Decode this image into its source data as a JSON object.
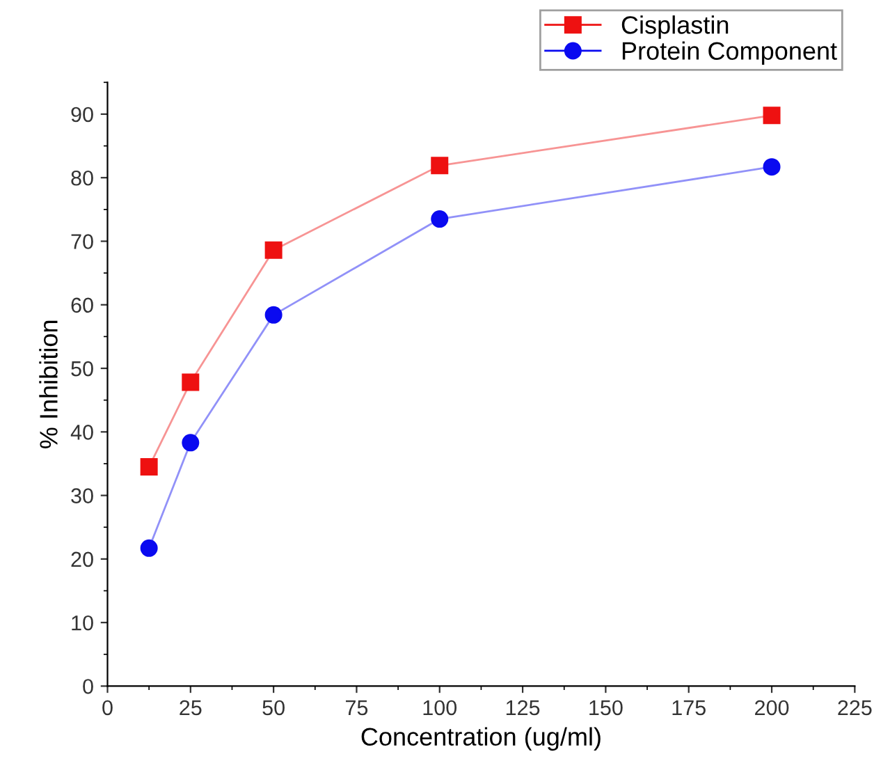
{
  "chart_data": {
    "type": "line",
    "xlabel": "Concentration (ug/ml)",
    "ylabel": "% Inhibition",
    "x": [
      12.5,
      25,
      50,
      100,
      200
    ],
    "series": [
      {
        "name": "Cisplastin",
        "color": "#ee1111",
        "marker": "square",
        "values": [
          34.5,
          47.8,
          68.6,
          81.9,
          89.8
        ]
      },
      {
        "name": "Protein Component",
        "color": "#0a0af0",
        "marker": "circle",
        "values": [
          21.7,
          38.3,
          58.4,
          73.5,
          81.7
        ]
      }
    ],
    "xlim": [
      0,
      225
    ],
    "xticks": [
      0,
      25,
      50,
      75,
      100,
      125,
      150,
      175,
      200,
      225
    ],
    "ylim": [
      0,
      95
    ],
    "yticks": [
      0,
      10,
      20,
      30,
      40,
      50,
      60,
      70,
      80,
      90
    ],
    "grid": false,
    "legend": "top right"
  }
}
